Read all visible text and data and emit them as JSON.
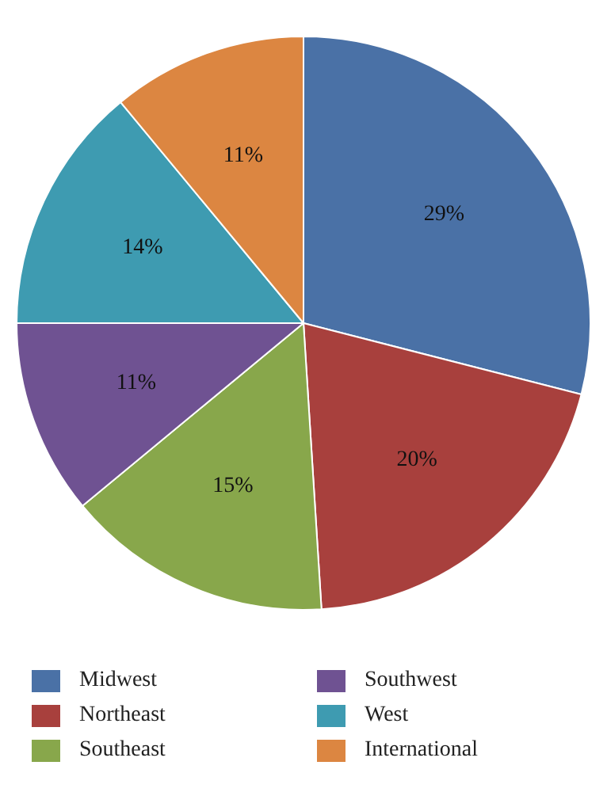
{
  "chart_data": {
    "type": "pie",
    "categories": [
      "Midwest",
      "Northeast",
      "Southeast",
      "Southwest",
      "West",
      "International"
    ],
    "values": [
      29,
      20,
      15,
      11,
      14,
      11
    ],
    "colors": [
      "#4a71a6",
      "#a8403d",
      "#88a74b",
      "#6f5292",
      "#3e9bb1",
      "#dc8641"
    ],
    "value_labels": [
      "29%",
      "20%",
      "15%",
      "11%",
      "14%",
      "11%"
    ],
    "legend": "bottom"
  }
}
